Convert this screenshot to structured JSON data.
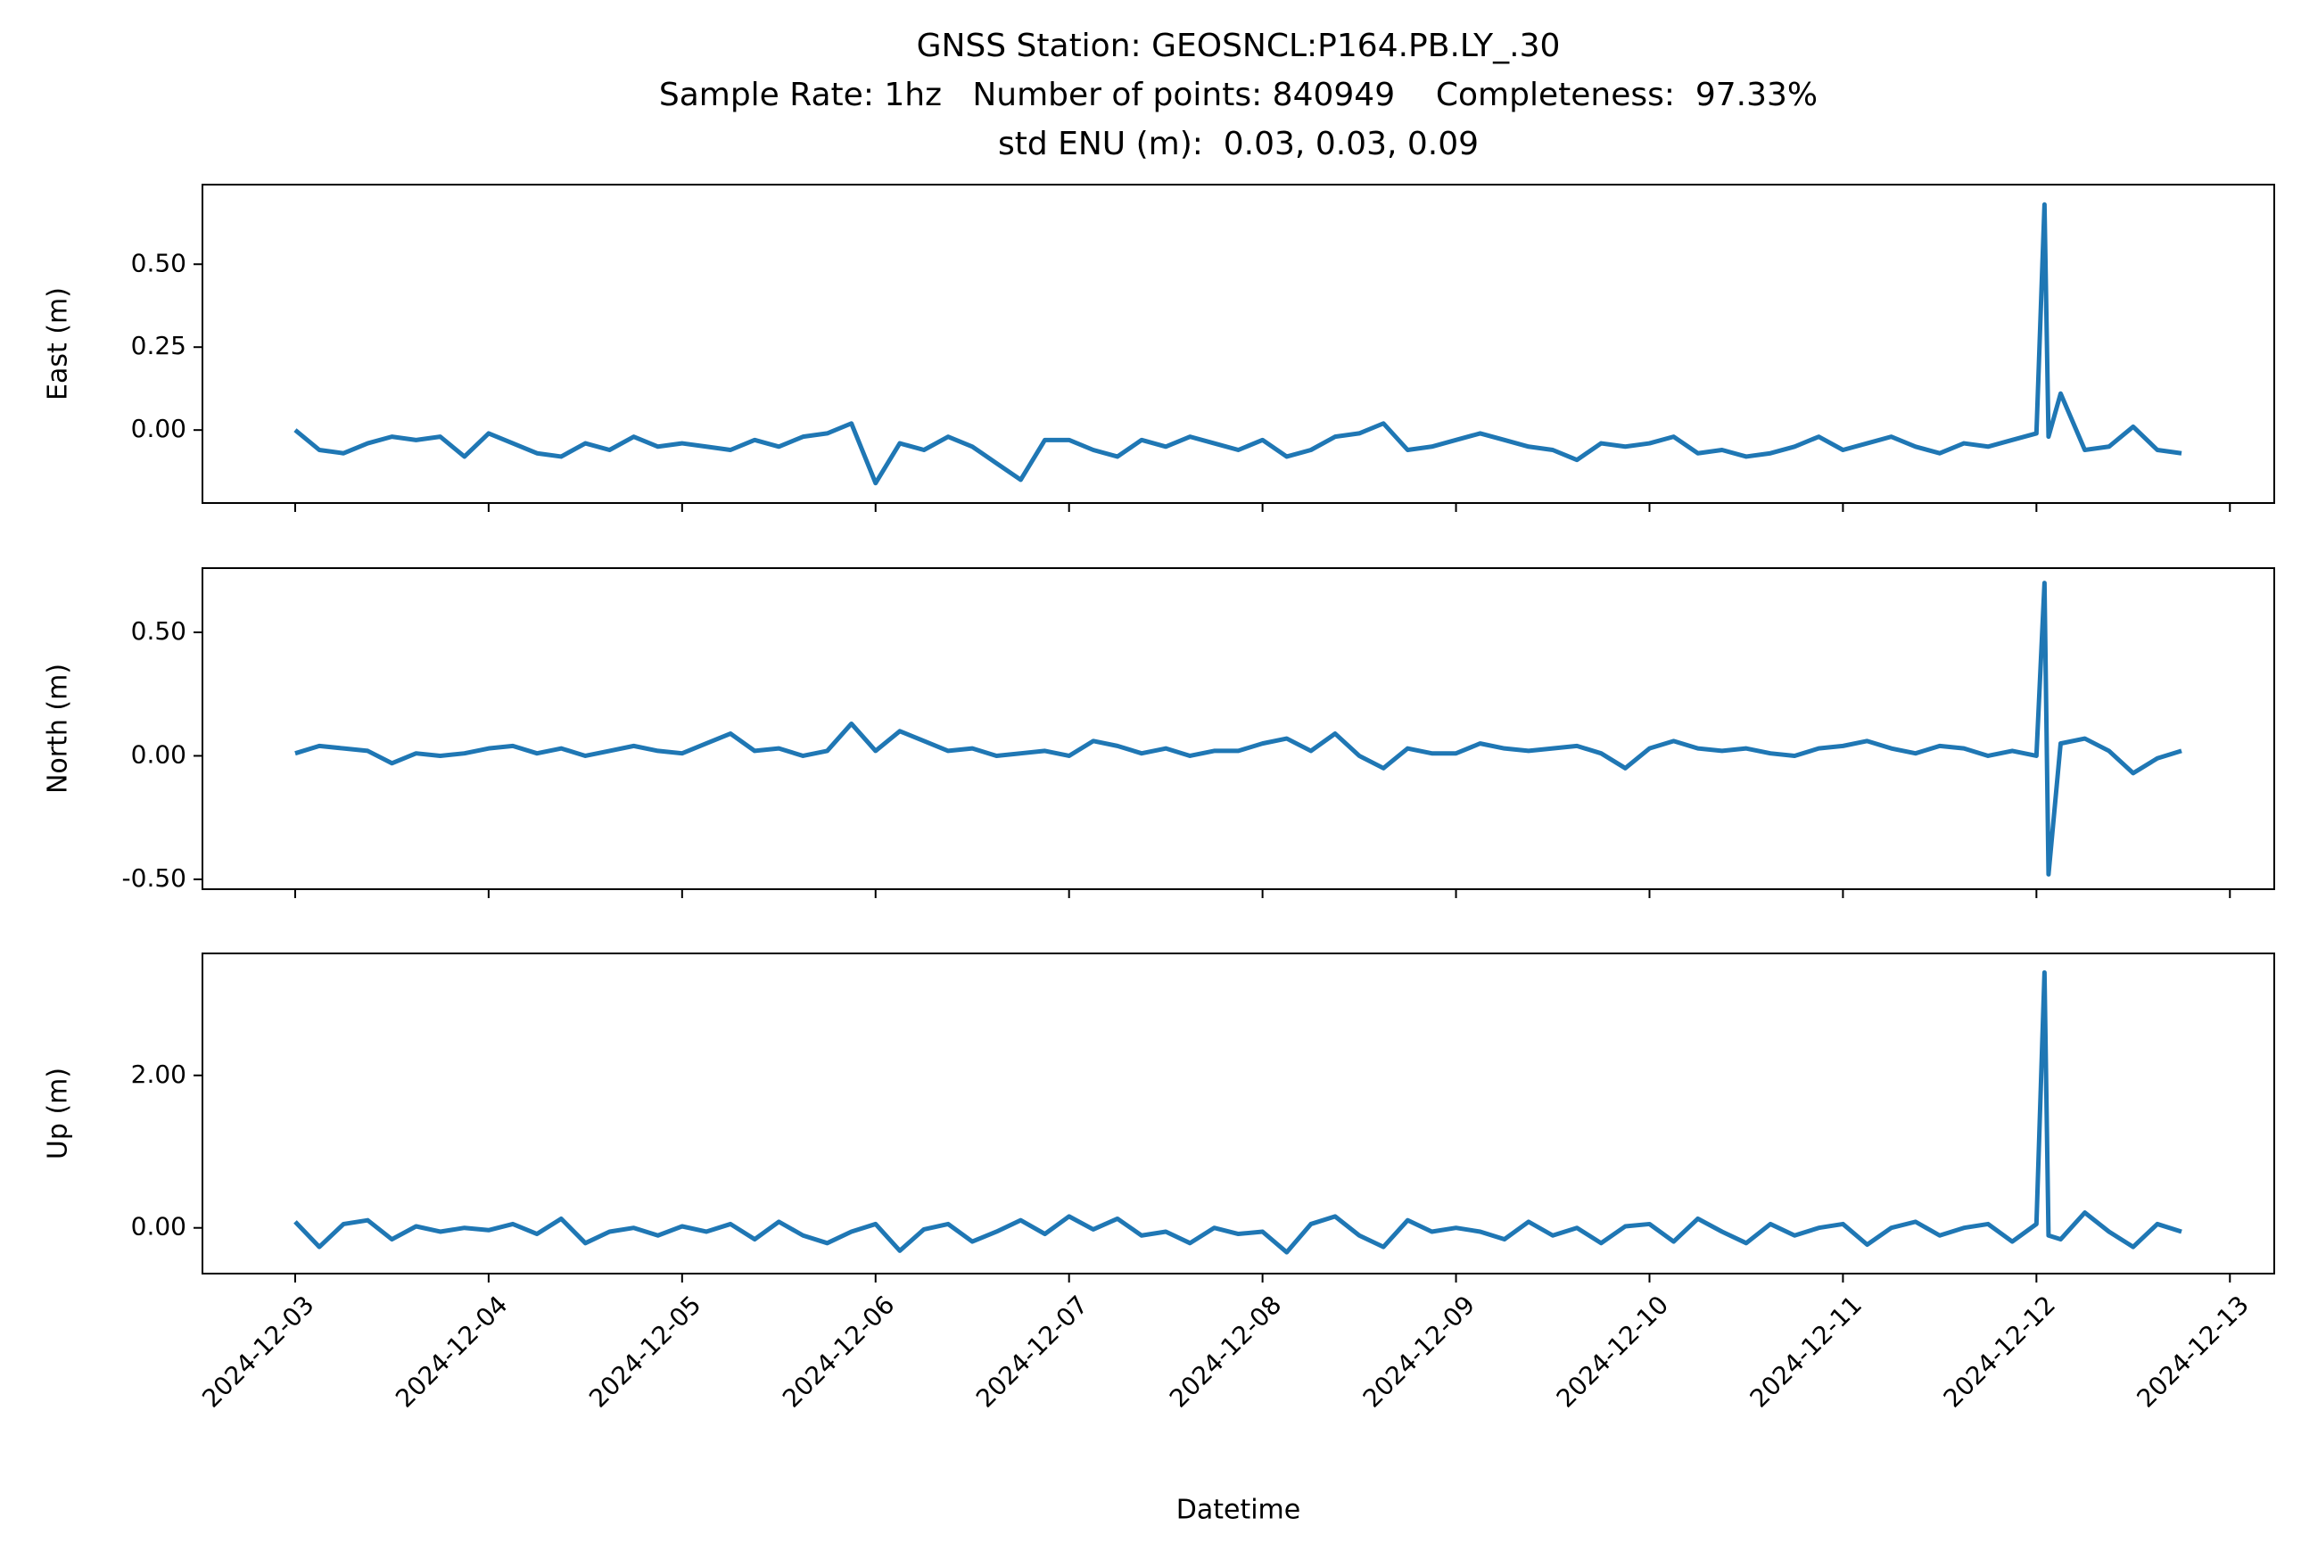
{
  "chart_data": [
    {
      "type": "line",
      "title": [
        "GNSS Station: GEOSNCL:P164.PB.LY_.30",
        "Sample Rate: 1hz   Number of points: 840949    Completeness:  97.33%",
        "std ENU (m):  0.03, 0.03, 0.09"
      ],
      "ylabel": "East (m)",
      "x": [
        "2024-12-03 00:00",
        "2024-12-03 03:00",
        "2024-12-03 06:00",
        "2024-12-03 09:00",
        "2024-12-03 12:00",
        "2024-12-03 15:00",
        "2024-12-03 18:00",
        "2024-12-03 21:00",
        "2024-12-04 00:00",
        "2024-12-04 03:00",
        "2024-12-04 06:00",
        "2024-12-04 09:00",
        "2024-12-04 12:00",
        "2024-12-04 15:00",
        "2024-12-04 18:00",
        "2024-12-04 21:00",
        "2024-12-05 00:00",
        "2024-12-05 03:00",
        "2024-12-05 06:00",
        "2024-12-05 09:00",
        "2024-12-05 12:00",
        "2024-12-05 15:00",
        "2024-12-05 18:00",
        "2024-12-05 21:00",
        "2024-12-06 00:00",
        "2024-12-06 03:00",
        "2024-12-06 06:00",
        "2024-12-06 09:00",
        "2024-12-06 12:00",
        "2024-12-06 15:00",
        "2024-12-06 18:00",
        "2024-12-06 21:00",
        "2024-12-07 00:00",
        "2024-12-07 03:00",
        "2024-12-07 06:00",
        "2024-12-07 09:00",
        "2024-12-07 12:00",
        "2024-12-07 15:00",
        "2024-12-07 18:00",
        "2024-12-07 21:00",
        "2024-12-08 00:00",
        "2024-12-08 03:00",
        "2024-12-08 06:00",
        "2024-12-08 09:00",
        "2024-12-08 12:00",
        "2024-12-08 15:00",
        "2024-12-08 18:00",
        "2024-12-08 21:00",
        "2024-12-09 00:00",
        "2024-12-09 03:00",
        "2024-12-09 06:00",
        "2024-12-09 09:00",
        "2024-12-09 12:00",
        "2024-12-09 15:00",
        "2024-12-09 18:00",
        "2024-12-09 21:00",
        "2024-12-10 00:00",
        "2024-12-10 03:00",
        "2024-12-10 06:00",
        "2024-12-10 09:00",
        "2024-12-10 12:00",
        "2024-12-10 15:00",
        "2024-12-10 18:00",
        "2024-12-10 21:00",
        "2024-12-11 00:00",
        "2024-12-11 03:00",
        "2024-12-11 06:00",
        "2024-12-11 09:00",
        "2024-12-11 12:00",
        "2024-12-11 15:00",
        "2024-12-11 18:00",
        "2024-12-11 21:00",
        "2024-12-12 00:00",
        "2024-12-12 01:00",
        "2024-12-12 01:30",
        "2024-12-12 03:00",
        "2024-12-12 06:00",
        "2024-12-12 09:00",
        "2024-12-12 12:00",
        "2024-12-12 15:00",
        "2024-12-12 18:00"
      ],
      "series": [
        {
          "color": "#1f77b4",
          "values": [
            0.0,
            -0.06,
            -0.07,
            -0.04,
            -0.02,
            -0.03,
            -0.02,
            -0.08,
            -0.01,
            -0.04,
            -0.07,
            -0.08,
            -0.04,
            -0.06,
            -0.02,
            -0.05,
            -0.04,
            -0.05,
            -0.06,
            -0.03,
            -0.05,
            -0.02,
            -0.01,
            0.02,
            -0.16,
            -0.04,
            -0.06,
            -0.02,
            -0.05,
            -0.1,
            -0.15,
            -0.03,
            -0.03,
            -0.06,
            -0.08,
            -0.03,
            -0.05,
            -0.02,
            -0.04,
            -0.06,
            -0.03,
            -0.08,
            -0.06,
            -0.02,
            -0.01,
            0.02,
            -0.06,
            -0.05,
            -0.03,
            -0.01,
            -0.03,
            -0.05,
            -0.06,
            -0.09,
            -0.04,
            -0.05,
            -0.04,
            -0.02,
            -0.07,
            -0.06,
            -0.08,
            -0.07,
            -0.05,
            -0.02,
            -0.06,
            -0.04,
            -0.02,
            -0.05,
            -0.07,
            -0.04,
            -0.05,
            -0.03,
            -0.01,
            0.68,
            -0.02,
            0.11,
            -0.06,
            -0.05,
            0.01,
            -0.06,
            -0.07
          ]
        }
      ],
      "xlim": [
        "2024-12-02 12:30",
        "2024-12-13 05:30"
      ],
      "ylim": [
        -0.22,
        0.74
      ],
      "yticks": [
        {
          "value": 0,
          "label": "0.00"
        },
        {
          "value": 0.25,
          "label": "0.25"
        },
        {
          "value": 0.5,
          "label": "0.50"
        }
      ]
    },
    {
      "type": "line",
      "ylabel": "North (m)",
      "x": [
        "2024-12-03 00:00",
        "2024-12-03 03:00",
        "2024-12-03 06:00",
        "2024-12-03 09:00",
        "2024-12-03 12:00",
        "2024-12-03 15:00",
        "2024-12-03 18:00",
        "2024-12-03 21:00",
        "2024-12-04 00:00",
        "2024-12-04 03:00",
        "2024-12-04 06:00",
        "2024-12-04 09:00",
        "2024-12-04 12:00",
        "2024-12-04 15:00",
        "2024-12-04 18:00",
        "2024-12-04 21:00",
        "2024-12-05 00:00",
        "2024-12-05 03:00",
        "2024-12-05 06:00",
        "2024-12-05 09:00",
        "2024-12-05 12:00",
        "2024-12-05 15:00",
        "2024-12-05 18:00",
        "2024-12-05 21:00",
        "2024-12-06 00:00",
        "2024-12-06 03:00",
        "2024-12-06 06:00",
        "2024-12-06 09:00",
        "2024-12-06 12:00",
        "2024-12-06 15:00",
        "2024-12-06 18:00",
        "2024-12-06 21:00",
        "2024-12-07 00:00",
        "2024-12-07 03:00",
        "2024-12-07 06:00",
        "2024-12-07 09:00",
        "2024-12-07 12:00",
        "2024-12-07 15:00",
        "2024-12-07 18:00",
        "2024-12-07 21:00",
        "2024-12-08 00:00",
        "2024-12-08 03:00",
        "2024-12-08 06:00",
        "2024-12-08 09:00",
        "2024-12-08 12:00",
        "2024-12-08 15:00",
        "2024-12-08 18:00",
        "2024-12-08 21:00",
        "2024-12-09 00:00",
        "2024-12-09 03:00",
        "2024-12-09 06:00",
        "2024-12-09 09:00",
        "2024-12-09 12:00",
        "2024-12-09 15:00",
        "2024-12-09 18:00",
        "2024-12-09 21:00",
        "2024-12-10 00:00",
        "2024-12-10 03:00",
        "2024-12-10 06:00",
        "2024-12-10 09:00",
        "2024-12-10 12:00",
        "2024-12-10 15:00",
        "2024-12-10 18:00",
        "2024-12-10 21:00",
        "2024-12-11 00:00",
        "2024-12-11 03:00",
        "2024-12-11 06:00",
        "2024-12-11 09:00",
        "2024-12-11 12:00",
        "2024-12-11 15:00",
        "2024-12-11 18:00",
        "2024-12-11 21:00",
        "2024-12-12 00:00",
        "2024-12-12 01:00",
        "2024-12-12 01:30",
        "2024-12-12 03:00",
        "2024-12-12 06:00",
        "2024-12-12 09:00",
        "2024-12-12 12:00",
        "2024-12-12 15:00",
        "2024-12-12 18:00"
      ],
      "series": [
        {
          "color": "#1f77b4",
          "values": [
            0.01,
            0.04,
            0.03,
            0.02,
            -0.03,
            0.01,
            0.0,
            0.01,
            0.03,
            0.04,
            0.01,
            0.03,
            0.0,
            0.02,
            0.04,
            0.02,
            0.01,
            0.05,
            0.09,
            0.02,
            0.03,
            0.0,
            0.02,
            0.13,
            0.02,
            0.1,
            0.06,
            0.02,
            0.03,
            0.0,
            0.01,
            0.02,
            0.0,
            0.06,
            0.04,
            0.01,
            0.03,
            0.0,
            0.02,
            0.02,
            0.05,
            0.07,
            0.02,
            0.09,
            0.0,
            -0.05,
            0.03,
            0.01,
            0.01,
            0.05,
            0.03,
            0.02,
            0.03,
            0.04,
            0.01,
            -0.05,
            0.03,
            0.06,
            0.03,
            0.02,
            0.03,
            0.01,
            0.0,
            0.03,
            0.04,
            0.06,
            0.03,
            0.01,
            0.04,
            0.03,
            0.0,
            0.02,
            0.0,
            0.7,
            -0.48,
            0.05,
            0.07,
            0.02,
            -0.07,
            -0.01,
            0.02
          ]
        }
      ],
      "xlim": [
        "2024-12-02 12:30",
        "2024-12-13 05:30"
      ],
      "ylim": [
        -0.54,
        0.76
      ],
      "yticks": [
        {
          "value": -0.5,
          "label": "-0.50"
        },
        {
          "value": 0,
          "label": "0.00"
        },
        {
          "value": 0.5,
          "label": "0.50"
        }
      ]
    },
    {
      "type": "line",
      "ylabel": "Up (m)",
      "xlabel": "Datetime",
      "x": [
        "2024-12-03 00:00",
        "2024-12-03 03:00",
        "2024-12-03 06:00",
        "2024-12-03 09:00",
        "2024-12-03 12:00",
        "2024-12-03 15:00",
        "2024-12-03 18:00",
        "2024-12-03 21:00",
        "2024-12-04 00:00",
        "2024-12-04 03:00",
        "2024-12-04 06:00",
        "2024-12-04 09:00",
        "2024-12-04 12:00",
        "2024-12-04 15:00",
        "2024-12-04 18:00",
        "2024-12-04 21:00",
        "2024-12-05 00:00",
        "2024-12-05 03:00",
        "2024-12-05 06:00",
        "2024-12-05 09:00",
        "2024-12-05 12:00",
        "2024-12-05 15:00",
        "2024-12-05 18:00",
        "2024-12-05 21:00",
        "2024-12-06 00:00",
        "2024-12-06 03:00",
        "2024-12-06 06:00",
        "2024-12-06 09:00",
        "2024-12-06 12:00",
        "2024-12-06 15:00",
        "2024-12-06 18:00",
        "2024-12-06 21:00",
        "2024-12-07 00:00",
        "2024-12-07 03:00",
        "2024-12-07 06:00",
        "2024-12-07 09:00",
        "2024-12-07 12:00",
        "2024-12-07 15:00",
        "2024-12-07 18:00",
        "2024-12-07 21:00",
        "2024-12-08 00:00",
        "2024-12-08 03:00",
        "2024-12-08 06:00",
        "2024-12-08 09:00",
        "2024-12-08 12:00",
        "2024-12-08 15:00",
        "2024-12-08 18:00",
        "2024-12-08 21:00",
        "2024-12-09 00:00",
        "2024-12-09 03:00",
        "2024-12-09 06:00",
        "2024-12-09 09:00",
        "2024-12-09 12:00",
        "2024-12-09 15:00",
        "2024-12-09 18:00",
        "2024-12-09 21:00",
        "2024-12-10 00:00",
        "2024-12-10 03:00",
        "2024-12-10 06:00",
        "2024-12-10 09:00",
        "2024-12-10 12:00",
        "2024-12-10 15:00",
        "2024-12-10 18:00",
        "2024-12-10 21:00",
        "2024-12-11 00:00",
        "2024-12-11 03:00",
        "2024-12-11 06:00",
        "2024-12-11 09:00",
        "2024-12-11 12:00",
        "2024-12-11 15:00",
        "2024-12-11 18:00",
        "2024-12-11 21:00",
        "2024-12-12 00:00",
        "2024-12-12 01:00",
        "2024-12-12 01:30",
        "2024-12-12 03:00",
        "2024-12-12 06:00",
        "2024-12-12 09:00",
        "2024-12-12 12:00",
        "2024-12-12 15:00",
        "2024-12-12 18:00"
      ],
      "series": [
        {
          "color": "#1f77b4",
          "values": [
            0.08,
            -0.25,
            0.05,
            0.1,
            -0.15,
            0.02,
            -0.05,
            0.0,
            -0.03,
            0.05,
            -0.08,
            0.12,
            -0.2,
            -0.05,
            0.0,
            -0.1,
            0.02,
            -0.05,
            0.05,
            -0.15,
            0.08,
            -0.1,
            -0.2,
            -0.05,
            0.05,
            -0.3,
            -0.02,
            0.05,
            -0.18,
            -0.05,
            0.1,
            -0.08,
            0.15,
            -0.02,
            0.12,
            -0.1,
            -0.05,
            -0.2,
            0.0,
            -0.08,
            -0.05,
            -0.32,
            0.05,
            0.15,
            -0.1,
            -0.25,
            0.1,
            -0.05,
            0.0,
            -0.05,
            -0.15,
            0.08,
            -0.1,
            0.0,
            -0.2,
            0.02,
            0.05,
            -0.18,
            0.12,
            -0.05,
            -0.2,
            0.05,
            -0.1,
            0.0,
            0.05,
            -0.22,
            0.0,
            0.08,
            -0.1,
            0.0,
            0.05,
            -0.18,
            0.05,
            3.35,
            -0.1,
            -0.15,
            0.2,
            -0.05,
            -0.25,
            0.05,
            -0.05
          ]
        }
      ],
      "xlim": [
        "2024-12-02 12:30",
        "2024-12-13 05:30"
      ],
      "ylim": [
        -0.6,
        3.6
      ],
      "yticks": [
        {
          "value": 0,
          "label": "0.00"
        },
        {
          "value": 2,
          "label": "2.00"
        }
      ],
      "xticks": [
        "2024-12-03",
        "2024-12-04",
        "2024-12-05",
        "2024-12-06",
        "2024-12-07",
        "2024-12-08",
        "2024-12-09",
        "2024-12-10",
        "2024-12-11",
        "2024-12-12",
        "2024-12-13"
      ]
    }
  ]
}
